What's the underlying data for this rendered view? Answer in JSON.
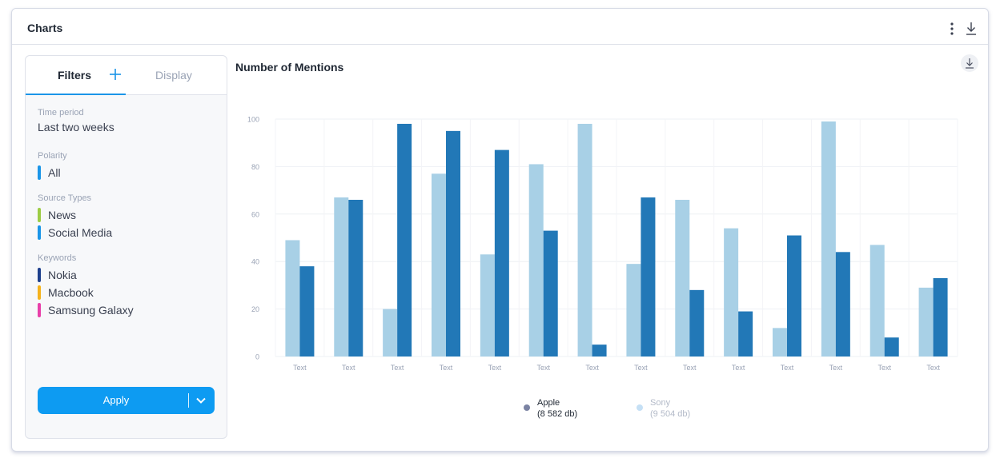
{
  "card": {
    "title": "Charts"
  },
  "header_icons": {
    "more": "more-vertical-icon",
    "download": "download-icon"
  },
  "panel": {
    "tabs": {
      "filters": "Filters",
      "display": "Display"
    },
    "time_period": {
      "label": "Time period",
      "value": "Last two weeks"
    },
    "polarity": {
      "label": "Polarity",
      "items": [
        {
          "label": "All",
          "color": "#1a95e8"
        }
      ]
    },
    "source_types": {
      "label": "Source Types",
      "items": [
        {
          "label": "News",
          "color": "#9ccc44"
        },
        {
          "label": "Social Media",
          "color": "#1a95e8"
        }
      ]
    },
    "keywords": {
      "label": "Keywords",
      "items": [
        {
          "label": "Nokia",
          "color": "#1d3f8c"
        },
        {
          "label": "Macbook",
          "color": "#f5b21d"
        },
        {
          "label": "Samsung Galaxy",
          "color": "#e83fa9"
        }
      ]
    },
    "apply": {
      "label": "Apply"
    }
  },
  "chart": {
    "title": "Number of Mentions"
  },
  "chart_data": {
    "type": "bar",
    "title": "Number of Mentions",
    "categories": [
      "Text",
      "Text",
      "Text",
      "Text",
      "Text",
      "Text",
      "Text",
      "Text",
      "Text",
      "Text",
      "Text",
      "Text",
      "Text",
      "Text"
    ],
    "series": [
      {
        "name": "Sony",
        "color": "#a8d0e6",
        "values": [
          49,
          67,
          20,
          77,
          43,
          81,
          98,
          39,
          66,
          54,
          12,
          99,
          47,
          29
        ]
      },
      {
        "name": "Apple",
        "color": "#2278b7",
        "values": [
          38,
          66,
          98,
          95,
          87,
          53,
          5,
          67,
          28,
          19,
          51,
          44,
          8,
          33
        ]
      }
    ],
    "ylim": [
      0,
      100
    ],
    "yticks": [
      0,
      20,
      40,
      60,
      80,
      100
    ],
    "grid": true,
    "legend_position": "bottom"
  },
  "legend": [
    {
      "name": "Apple",
      "count": "(8 582 db)",
      "dot_color": "#7b83a3",
      "text_color": "#1f2733"
    },
    {
      "name": "Sony",
      "count": "(9 504 db)",
      "dot_color": "#c5e0f5",
      "text_color": "#b3bac8"
    }
  ],
  "colors": {
    "accent": "#0d9bf2",
    "tab_underline": "#1a95e8"
  }
}
